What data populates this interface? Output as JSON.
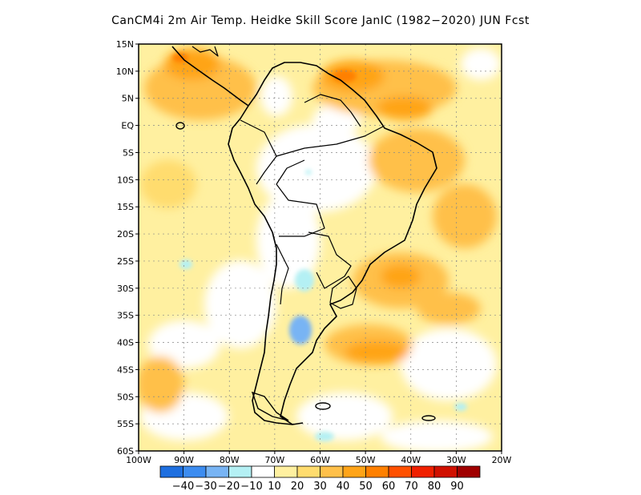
{
  "title": "CanCM4i  2m Air Temp. Heidke Skill Score JanIC (1982−2020) JUN Fcst",
  "lat_labels": [
    "15N",
    "10N",
    "5N",
    "EQ",
    "5S",
    "10S",
    "15S",
    "20S",
    "25S",
    "30S",
    "35S",
    "40S",
    "45S",
    "50S",
    "55S",
    "60S"
  ],
  "lon_labels": [
    "100W",
    "90W",
    "80W",
    "70W",
    "60W",
    "50W",
    "40W",
    "30W",
    "20W"
  ],
  "colorbar": {
    "colors": [
      "#1e6fe0",
      "#3c8cf0",
      "#78b4f4",
      "#b4f0f4",
      "#ffffff",
      "#fff0a0",
      "#ffdc6e",
      "#ffc04a",
      "#ffa418",
      "#ff8000",
      "#ff5000",
      "#f02000",
      "#d01000",
      "#a00000"
    ],
    "labels": [
      "−40",
      "−30",
      "−20",
      "−10",
      "10",
      "20",
      "30",
      "40",
      "50",
      "60",
      "70",
      "80",
      "90"
    ]
  }
}
